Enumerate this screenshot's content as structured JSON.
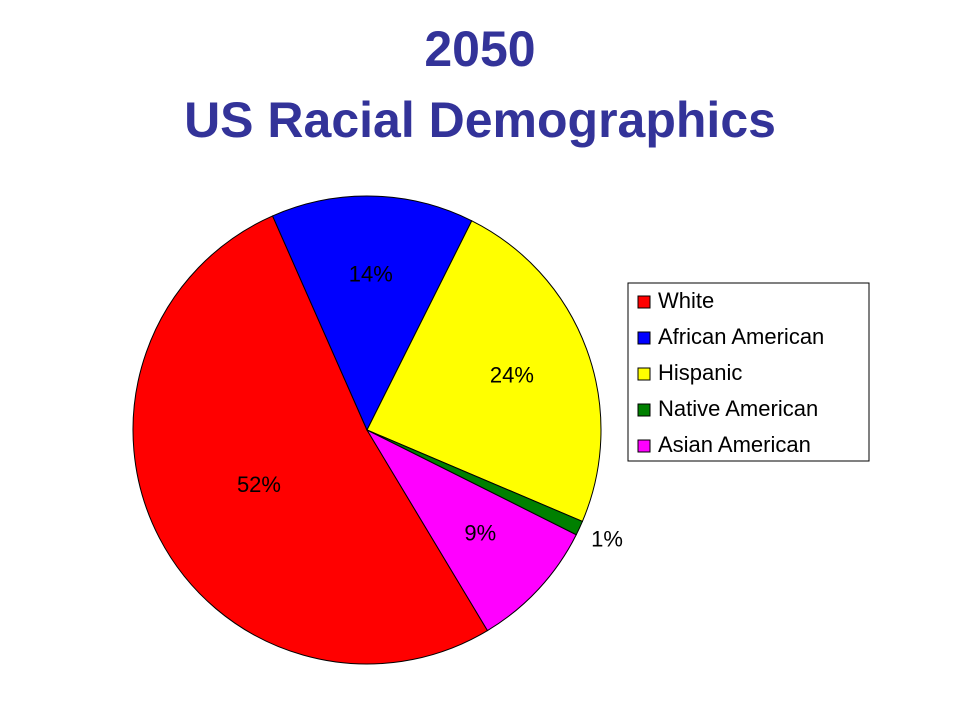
{
  "chart_data": {
    "type": "pie",
    "title": [
      "2050",
      "US Racial Demographics"
    ],
    "categories": [
      "White",
      "African American",
      "Hispanic",
      "Native American",
      "Asian American"
    ],
    "values": [
      52,
      14,
      24,
      1,
      9
    ],
    "value_labels": [
      "52%",
      "14%",
      "24%",
      "1%",
      "9%"
    ],
    "colors": [
      "#ff0000",
      "#0000ff",
      "#ffff00",
      "#008000",
      "#ff00ff"
    ],
    "legend": "right"
  }
}
